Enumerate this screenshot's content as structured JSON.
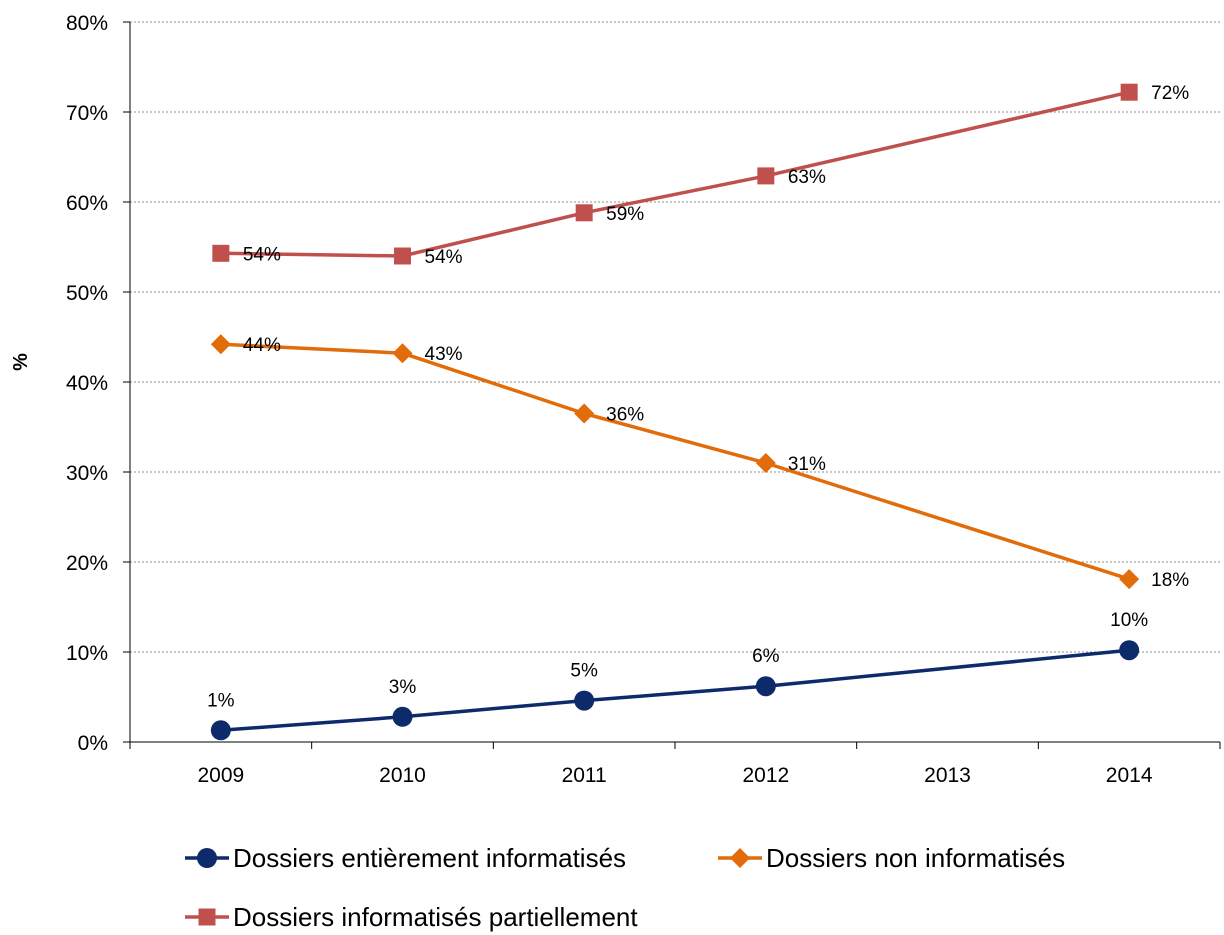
{
  "chart_data": {
    "type": "line",
    "title": "",
    "xlabel": "",
    "ylabel": "%",
    "x": [
      "2009",
      "2010",
      "2011",
      "2012",
      "2013",
      "2014"
    ],
    "ylim": [
      0,
      80
    ],
    "yticks": [
      0,
      10,
      20,
      30,
      40,
      50,
      60,
      70,
      80
    ],
    "ytick_labels": [
      "0%",
      "10%",
      "20%",
      "30%",
      "40%",
      "50%",
      "60%",
      "70%",
      "80%"
    ],
    "grid": "horizontal dotted",
    "legend_position": "bottom",
    "series": [
      {
        "name": "Dossiers entièrement informatisés",
        "values": [
          1.3,
          2.8,
          4.6,
          6.2,
          null,
          10.2
        ],
        "labels": [
          "1%",
          "3%",
          "5%",
          "6%",
          null,
          "10%"
        ],
        "marker": "circle",
        "color": "#0d2a6a"
      },
      {
        "name": "Dossiers non informatisés",
        "values": [
          44.2,
          43.2,
          36.5,
          31.0,
          null,
          18.1
        ],
        "labels": [
          "44%",
          "43%",
          "36%",
          "31%",
          null,
          "18%"
        ],
        "marker": "diamond",
        "color": "#e26b0a"
      },
      {
        "name": "Dossiers informatisés partiellement",
        "values": [
          54.3,
          54.0,
          58.8,
          62.9,
          null,
          72.2
        ],
        "labels": [
          "54%",
          "54%",
          "59%",
          "63%",
          null,
          "72%"
        ],
        "marker": "square",
        "color": "#c0504d"
      }
    ]
  }
}
